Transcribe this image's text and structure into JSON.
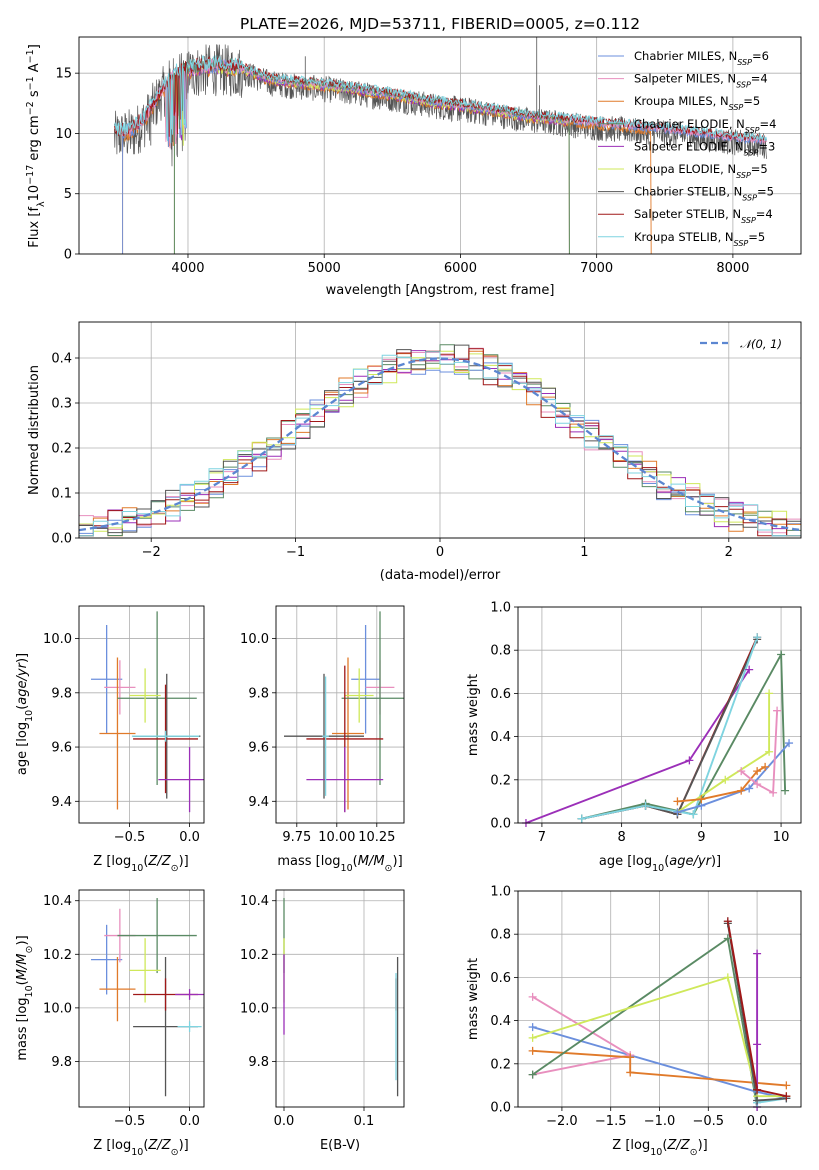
{
  "title": "PLATE=2026, MJD=53711, FIBERID=0005, z=0.112",
  "colors": {
    "Chabrier MILES": "#6b8fdd",
    "Salpeter MILES": "#e88fbe",
    "Kroupa MILES": "#e07a2a",
    "Chabrier ELODIE": "#5a8a64",
    "Salpeter ELODIE": "#9b2fb8",
    "Kroupa ELODIE": "#cfe85a",
    "Chabrier STELIB": "#555555",
    "Salpeter STELIB": "#a01818",
    "Kroupa STELIB": "#7fd4e0"
  },
  "legend_spectrum": [
    "Chabrier MILES, N_SSP=6",
    "Salpeter MILES, N_SSP=4",
    "Kroupa MILES, N_SSP=5",
    "Chabrier ELODIE, N_SSP=4",
    "Salpeter ELODIE, N_SSP=3",
    "Kroupa ELODIE, N_SSP=5",
    "Chabrier STELIB, N_SSP=5",
    "Salpeter STELIB, N_SSP=4",
    "Kroupa STELIB, N_SSP=5"
  ],
  "legend_hist": "𝒩(0, 1)",
  "chart_data": [
    {
      "id": "spectrum",
      "type": "line",
      "title": "PLATE=2026, MJD=53711, FIBERID=0005, z=0.112",
      "xlabel": "wavelength [Angstrom, rest frame]",
      "ylabel": "Flux [fλ10⁻¹⁷ erg cm⁻² s⁻¹ A⁻¹]",
      "xlim": [
        3200,
        8500
      ],
      "ylim": [
        0,
        18
      ],
      "xticks": [
        4000,
        5000,
        6000,
        7000,
        8000
      ],
      "yticks": [
        0,
        5,
        10,
        15
      ],
      "envelope_x": [
        3460,
        3600,
        3700,
        3800,
        3900,
        4000,
        4100,
        4200,
        4400,
        4600,
        4800,
        5000,
        5200,
        5500,
        5800,
        6000,
        6200,
        6500,
        6700,
        7000,
        7200,
        7500,
        7800,
        8000,
        8250
      ],
      "envelope_y": [
        10,
        10.3,
        11.5,
        13.5,
        14.8,
        15.3,
        15.5,
        15.6,
        15.4,
        14.5,
        14.2,
        14,
        13.7,
        13.2,
        12.6,
        12.3,
        12,
        11.4,
        11.2,
        10.8,
        10.6,
        10.3,
        9.9,
        9.6,
        9.3
      ],
      "legend_loc": "upper right"
    },
    {
      "id": "residuals",
      "type": "line",
      "xlabel": "(data-model)/error",
      "ylabel": "Normed distribution",
      "xlim": [
        -2.5,
        2.5
      ],
      "ylim": [
        0,
        0.48
      ],
      "xticks": [
        -2,
        -1,
        0,
        1,
        2
      ],
      "yticks": [
        0.0,
        0.1,
        0.2,
        0.3,
        0.4
      ],
      "gaussian": {
        "mu": 0,
        "sigma": 1,
        "name": "𝒩(0, 1)"
      },
      "bin_width": 0.1,
      "legend_loc": "upper right"
    },
    {
      "id": "age_vs_Z",
      "type": "scatter",
      "xlabel": "Z [log10(Z/Z⊙)]",
      "ylabel": "age [log10(age/yr)]",
      "xlim": [
        -0.92,
        0.12
      ],
      "ylim": [
        9.32,
        10.12
      ],
      "xticks": [
        -0.5,
        0.0
      ],
      "yticks": [
        9.4,
        9.6,
        9.8,
        10.0
      ],
      "points": [
        {
          "series": "Chabrier MILES",
          "x": -0.69,
          "y": 9.85,
          "xerr": 0.13,
          "yerr": 0.2
        },
        {
          "series": "Salpeter MILES",
          "x": -0.58,
          "y": 9.82,
          "xerr": 0.13,
          "yerr": 0.1
        },
        {
          "series": "Kroupa MILES",
          "x": -0.6,
          "y": 9.65,
          "xerr": 0.15,
          "yerr": 0.28
        },
        {
          "series": "Chabrier ELODIE",
          "x": -0.27,
          "y": 9.78,
          "xerr": 0.33,
          "yerr": 0.32
        },
        {
          "series": "Kroupa ELODIE",
          "x": -0.37,
          "y": 9.79,
          "xerr": 0.13,
          "yerr": 0.1
        },
        {
          "series": "Chabrier STELIB",
          "x": -0.19,
          "y": 9.64,
          "xerr": 0.28,
          "yerr": 0.23
        },
        {
          "series": "Salpeter STELIB",
          "x": -0.2,
          "y": 9.63,
          "xerr": 0.27,
          "yerr": 0.2
        },
        {
          "series": "Salpeter ELODIE",
          "x": 0.0,
          "y": 9.48,
          "xerr": 0.26,
          "yerr": 0.12
        },
        {
          "series": "Kroupa STELIB",
          "x": -0.2,
          "y": 9.64,
          "xerr": 0.28,
          "yerr": 0.02
        }
      ]
    },
    {
      "id": "age_vs_mass",
      "type": "scatter",
      "xlabel": "mass [log10(M/M⊙)]",
      "ylabel": "",
      "xlim": [
        9.62,
        10.42
      ],
      "ylim": [
        9.32,
        10.12
      ],
      "xticks": [
        9.75,
        10.0,
        10.25
      ],
      "yticks": [
        9.4,
        9.6,
        9.8,
        10.0
      ],
      "points": [
        {
          "series": "Chabrier MILES",
          "x": 10.18,
          "y": 9.85,
          "xerr": 0.09,
          "yerr": 0.2
        },
        {
          "series": "Salpeter MILES",
          "x": 10.27,
          "y": 9.82,
          "xerr": 0.09,
          "yerr": 0.1
        },
        {
          "series": "Kroupa MILES",
          "x": 10.07,
          "y": 9.65,
          "xerr": 0.1,
          "yerr": 0.28
        },
        {
          "series": "Chabrier ELODIE",
          "x": 10.27,
          "y": 9.78,
          "xerr": 0.24,
          "yerr": 0.32
        },
        {
          "series": "Kroupa ELODIE",
          "x": 10.14,
          "y": 9.79,
          "xerr": 0.09,
          "yerr": 0.1
        },
        {
          "series": "Chabrier STELIB",
          "x": 9.92,
          "y": 9.64,
          "xerr": 0.25,
          "yerr": 0.23
        },
        {
          "series": "Salpeter STELIB",
          "x": 10.05,
          "y": 9.63,
          "xerr": 0.24,
          "yerr": 0.27
        },
        {
          "series": "Salpeter ELODIE",
          "x": 10.05,
          "y": 9.48,
          "xerr": 0.24,
          "yerr": 0.12
        },
        {
          "series": "Kroupa STELIB",
          "x": 9.93,
          "y": 9.64,
          "xerr": 0.02,
          "yerr": 0.22
        }
      ]
    },
    {
      "id": "weight_vs_age",
      "type": "line",
      "xlabel": "age [log10(age/yr)]",
      "ylabel": "mass weight",
      "xlim": [
        6.7,
        10.25
      ],
      "ylim": [
        0,
        1
      ],
      "xticks": [
        7,
        8,
        9,
        10
      ],
      "yticks": [
        0.0,
        0.2,
        0.4,
        0.6,
        0.8,
        1.0
      ],
      "series": [
        {
          "series": "Salpeter ELODIE",
          "points": [
            [
              6.8,
              0.0
            ],
            [
              8.85,
              0.29
            ],
            [
              9.6,
              0.71
            ]
          ]
        },
        {
          "series": "Salpeter STELIB",
          "points": [
            [
              7.5,
              0.02
            ],
            [
              8.3,
              0.08
            ],
            [
              8.7,
              0.04
            ],
            [
              9.7,
              0.86
            ]
          ]
        },
        {
          "series": "Chabrier ELODIE",
          "points": [
            [
              7.5,
              0.02
            ],
            [
              8.3,
              0.09
            ],
            [
              8.9,
              0.04
            ],
            [
              10.0,
              0.78
            ],
            [
              10.05,
              0.15
            ]
          ]
        },
        {
          "series": "Chabrier STELIB",
          "points": [
            [
              7.5,
              0.02
            ],
            [
              8.3,
              0.08
            ],
            [
              8.7,
              0.04
            ],
            [
              9.7,
              0.85
            ]
          ]
        },
        {
          "series": "Kroupa STELIB",
          "points": [
            [
              7.5,
              0.02
            ],
            [
              8.3,
              0.08
            ],
            [
              8.9,
              0.04
            ],
            [
              9.7,
              0.86
            ]
          ]
        },
        {
          "series": "Kroupa ELODIE",
          "points": [
            [
              8.7,
              0.05
            ],
            [
              9.3,
              0.2
            ],
            [
              9.85,
              0.33
            ],
            [
              9.85,
              0.6
            ]
          ]
        },
        {
          "series": "Chabrier MILES",
          "points": [
            [
              8.7,
              0.05
            ],
            [
              9.0,
              0.08
            ],
            [
              9.6,
              0.16
            ],
            [
              10.1,
              0.37
            ]
          ]
        },
        {
          "series": "Kroupa MILES",
          "points": [
            [
              8.7,
              0.1
            ],
            [
              9.0,
              0.11
            ],
            [
              9.5,
              0.15
            ],
            [
              9.7,
              0.24
            ],
            [
              9.8,
              0.26
            ]
          ]
        },
        {
          "series": "Salpeter MILES",
          "points": [
            [
              9.5,
              0.24
            ],
            [
              9.7,
              0.18
            ],
            [
              9.9,
              0.14
            ],
            [
              9.95,
              0.52
            ]
          ]
        }
      ]
    },
    {
      "id": "mass_vs_Z",
      "type": "scatter",
      "xlabel": "Z [log10(Z/Z⊙)]",
      "ylabel": "mass [log10(M/M⊙)]",
      "xlim": [
        -0.92,
        0.12
      ],
      "ylim": [
        9.63,
        10.44
      ],
      "xticks": [
        -0.5,
        0.0
      ],
      "yticks": [
        9.8,
        10.0,
        10.2,
        10.4
      ],
      "points": [
        {
          "series": "Chabrier MILES",
          "x": -0.69,
          "y": 10.18,
          "xerr": 0.13,
          "yerr": 0.13
        },
        {
          "series": "Salpeter MILES",
          "x": -0.58,
          "y": 10.27,
          "xerr": 0.13,
          "yerr": 0.1
        },
        {
          "series": "Kroupa MILES",
          "x": -0.6,
          "y": 10.07,
          "xerr": 0.15,
          "yerr": 0.12
        },
        {
          "series": "Chabrier ELODIE",
          "x": -0.27,
          "y": 10.27,
          "xerr": 0.33,
          "yerr": 0.14
        },
        {
          "series": "Kroupa ELODIE",
          "x": -0.37,
          "y": 10.14,
          "xerr": 0.13,
          "yerr": 0.12
        },
        {
          "series": "Chabrier STELIB",
          "x": -0.2,
          "y": 9.93,
          "xerr": 0.27,
          "yerr": 0.26
        },
        {
          "series": "Salpeter STELIB",
          "x": -0.2,
          "y": 10.05,
          "xerr": 0.27,
          "yerr": 0.06
        },
        {
          "series": "Salpeter ELODIE",
          "x": 0.0,
          "y": 10.05,
          "xerr": 0.12,
          "yerr": 0.02
        },
        {
          "series": "Kroupa STELIB",
          "x": 0.0,
          "y": 9.93,
          "xerr": 0.1,
          "yerr": 0.02
        }
      ]
    },
    {
      "id": "mass_vs_EBV",
      "type": "scatter",
      "xlabel": "E(B-V)",
      "ylabel": "",
      "xlim": [
        -0.01,
        0.15
      ],
      "ylim": [
        9.63,
        10.44
      ],
      "xticks": [
        0.0,
        0.1
      ],
      "yticks": [
        9.8,
        10.0,
        10.2,
        10.4
      ],
      "points": [
        {
          "series": "Chabrier ELODIE",
          "x": 0.0,
          "y": 10.27,
          "yerr": 0.14
        },
        {
          "series": "Kroupa ELODIE",
          "x": 0.0,
          "y": 10.14,
          "yerr": 0.12
        },
        {
          "series": "Salpeter ELODIE",
          "x": 0.0,
          "y": 10.05,
          "yerr": 0.15
        },
        {
          "series": "Salpeter STELIB",
          "x": 0.14,
          "y": 10.05,
          "yerr": 0.06
        },
        {
          "series": "Kroupa STELIB",
          "x": 0.14,
          "y": 9.93,
          "yerr": 0.2
        },
        {
          "series": "Chabrier STELIB",
          "x": 0.142,
          "y": 9.93,
          "yerr": 0.26
        }
      ]
    },
    {
      "id": "weight_vs_Z",
      "type": "line",
      "xlabel": "Z [log10(Z/Z⊙)]",
      "ylabel": "mass weight",
      "xlim": [
        -2.45,
        0.45
      ],
      "ylim": [
        0,
        1
      ],
      "xticks": [
        -2.0,
        -1.5,
        -1.0,
        -0.5,
        0.0
      ],
      "yticks": [
        0.0,
        0.2,
        0.4,
        0.6,
        0.8,
        1.0
      ],
      "series": [
        {
          "series": "Chabrier MILES",
          "points": [
            [
              -2.3,
              0.37
            ],
            [
              0.0,
              0.07
            ],
            [
              0.3,
              0.04
            ]
          ]
        },
        {
          "series": "Salpeter MILES",
          "points": [
            [
              -2.3,
              0.15
            ],
            [
              -1.3,
              0.24
            ],
            [
              -2.3,
              0.51
            ]
          ]
        },
        {
          "series": "Kroupa MILES",
          "points": [
            [
              -2.3,
              0.26
            ],
            [
              -1.3,
              0.23
            ],
            [
              -1.3,
              0.16
            ],
            [
              0.3,
              0.1
            ]
          ]
        },
        {
          "series": "Chabrier ELODIE",
          "points": [
            [
              -2.3,
              0.15
            ],
            [
              -0.3,
              0.78
            ],
            [
              0.0,
              0.0
            ]
          ]
        },
        {
          "series": "Kroupa ELODIE",
          "points": [
            [
              -2.3,
              0.32
            ],
            [
              -0.3,
              0.6
            ],
            [
              0.0,
              0.05
            ],
            [
              0.3,
              0.05
            ]
          ]
        },
        {
          "series": "Salpeter ELODIE",
          "points": [
            [
              0.0,
              0.0
            ],
            [
              0.0,
              0.29
            ],
            [
              0.0,
              0.71
            ]
          ]
        },
        {
          "series": "Kroupa STELIB",
          "points": [
            [
              -0.3,
              0.86
            ],
            [
              0.0,
              0.02
            ],
            [
              0.3,
              0.04
            ]
          ]
        },
        {
          "series": "Chabrier STELIB",
          "points": [
            [
              -0.3,
              0.85
            ],
            [
              0.0,
              0.03
            ],
            [
              0.3,
              0.04
            ]
          ]
        },
        {
          "series": "Salpeter STELIB",
          "points": [
            [
              -0.3,
              0.86
            ],
            [
              0.0,
              0.08
            ],
            [
              0.3,
              0.05
            ]
          ]
        }
      ]
    }
  ]
}
